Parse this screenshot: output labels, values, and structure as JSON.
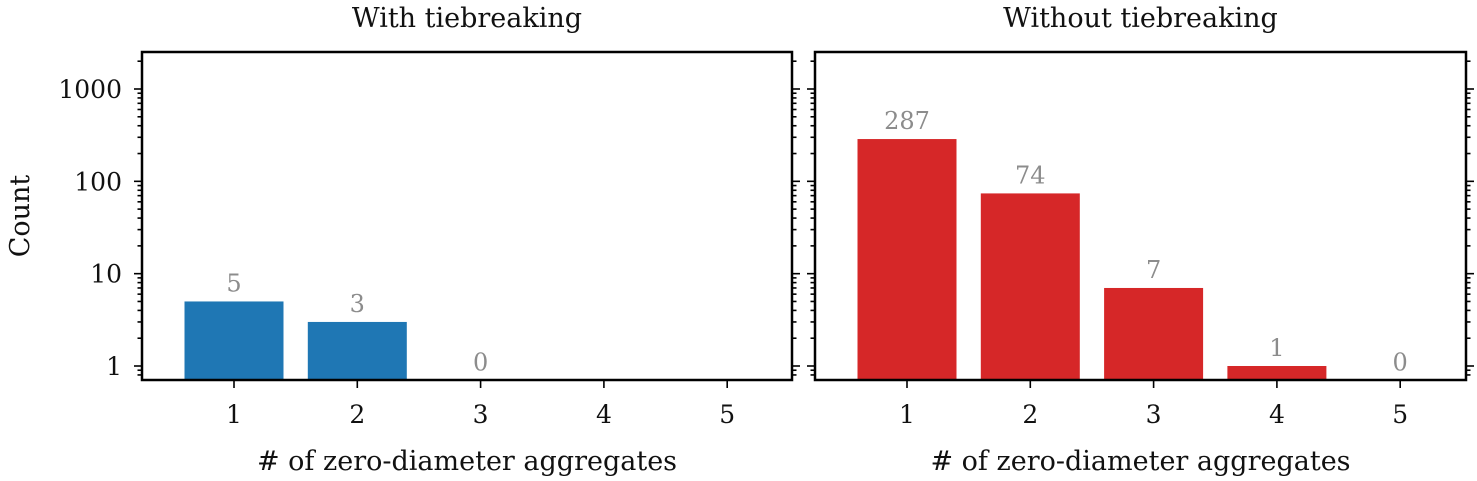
{
  "chart_data": [
    {
      "type": "bar",
      "title": "With tiebreaking",
      "xlabel": "# of zero-diameter aggregates",
      "ylabel": "Count",
      "yscale": "log",
      "categories": [
        "1",
        "2",
        "3",
        "4",
        "5"
      ],
      "values": [
        5,
        3,
        0,
        null,
        null
      ],
      "value_labels": [
        "5",
        "3",
        "0",
        "",
        ""
      ],
      "color": "#1f77b4",
      "yticks": [
        "1",
        "10",
        "100",
        "1000"
      ],
      "grid": false
    },
    {
      "type": "bar",
      "title": "Without tiebreaking",
      "xlabel": "# of zero-diameter aggregates",
      "ylabel": "",
      "yscale": "log",
      "categories": [
        "1",
        "2",
        "3",
        "4",
        "5"
      ],
      "values": [
        287,
        74,
        7,
        1,
        0
      ],
      "value_labels": [
        "287",
        "74",
        "7",
        "1",
        "0"
      ],
      "color": "#d62728",
      "yticks": [],
      "grid": false
    }
  ]
}
